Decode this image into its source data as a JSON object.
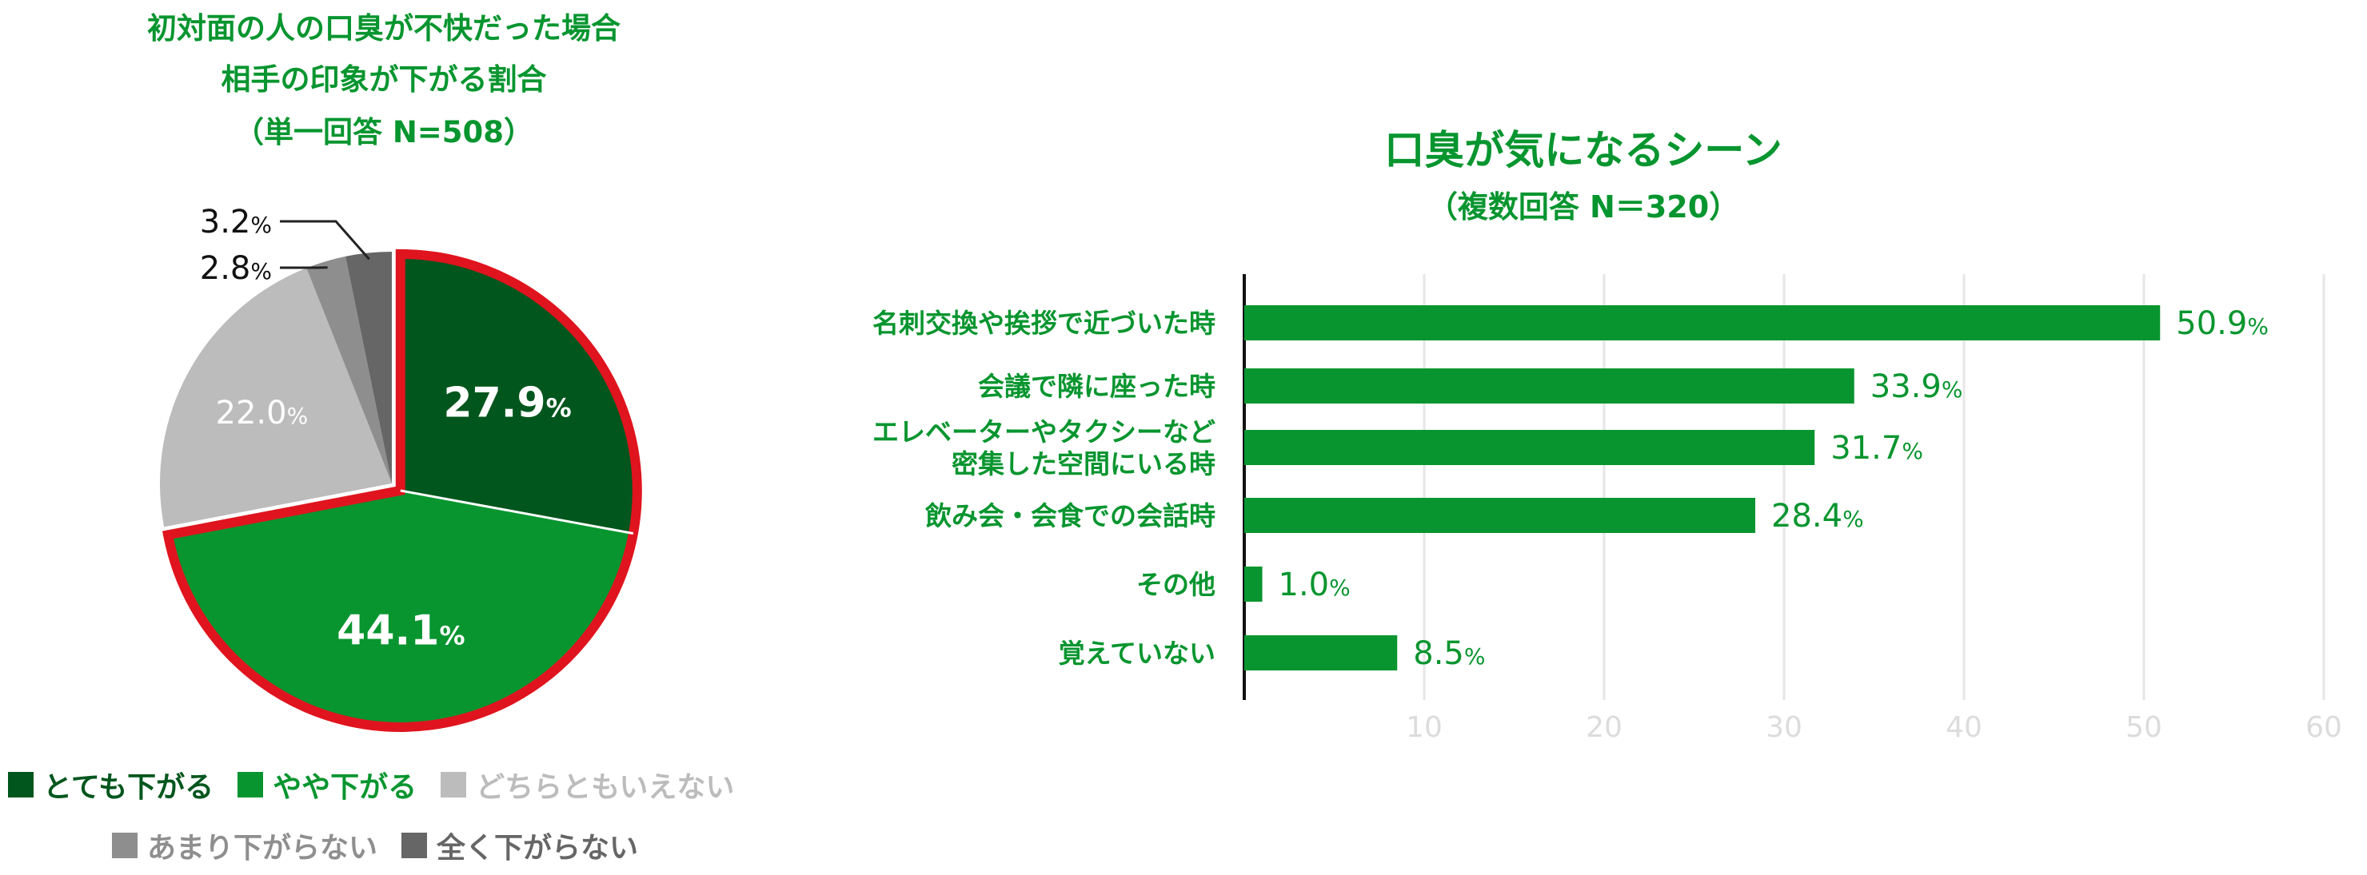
{
  "chart_data": [
    {
      "type": "pie",
      "title_lines": [
        "初対面の人の口臭が不快だった場合",
        "相手の印象が下がる割合",
        "（単一回答 N=508）"
      ],
      "unit": "%",
      "slices": [
        {
          "name": "とても下がる",
          "value": 27.9,
          "label": "27.9",
          "color": "#01561d",
          "highlight": true
        },
        {
          "name": "やや下がる",
          "value": 44.1,
          "label": "44.1",
          "color": "#08952f",
          "highlight": true
        },
        {
          "name": "どちらともいえない",
          "value": 22.0,
          "label": "22.0",
          "color": "#bcbcbc",
          "highlight": false
        },
        {
          "name": "あまり下がらない",
          "value": 2.8,
          "label": "2.8",
          "color": "#8e8e8e",
          "highlight": false
        },
        {
          "name": "全く下がらない",
          "value": 3.2,
          "label": "3.2",
          "color": "#666666",
          "highlight": false
        }
      ],
      "highlight_color": "#e0141e",
      "legend_rows": [
        [
          {
            "label": "とても下がる",
            "color": "#01561d",
            "text_color": "#01561d"
          },
          {
            "label": "やや下がる",
            "color": "#08952f",
            "text_color": "#08952f"
          },
          {
            "label": "どちらともいえない",
            "color": "#bcbcbc",
            "text_color": "#bcbcbc"
          }
        ],
        [
          {
            "label": "あまり下がらない",
            "color": "#8e8e8e",
            "text_color": "#8e8e8e"
          },
          {
            "label": "全く下がらない",
            "color": "#666666",
            "text_color": "#666666"
          }
        ]
      ]
    },
    {
      "type": "bar",
      "orientation": "horizontal",
      "title_lines": [
        "口臭が気になるシーン",
        "（複数回答 N＝320）"
      ],
      "categories": [
        [
          "名刺交換や挨拶で近づいた時"
        ],
        [
          "会議で隣に座った時"
        ],
        [
          "エレベーターやタクシーなど",
          "密集した空間にいる時"
        ],
        [
          "飲み会・会食での会話時"
        ],
        [
          "その他"
        ],
        [
          "覚えていない"
        ]
      ],
      "values": [
        50.9,
        33.9,
        31.7,
        28.4,
        1.0,
        8.5
      ],
      "value_labels": [
        "50.9",
        "33.9",
        "31.7",
        "28.4",
        "1.0",
        "8.5"
      ],
      "unit": "%",
      "xlim": [
        0,
        60
      ],
      "xticks": [
        10,
        20,
        30,
        40,
        50,
        60
      ],
      "grid": true,
      "bar_color": "#08952f",
      "label_color": "#08952f",
      "grid_color": "#e6e6e6",
      "tick_color": "#dcdcdc"
    }
  ]
}
